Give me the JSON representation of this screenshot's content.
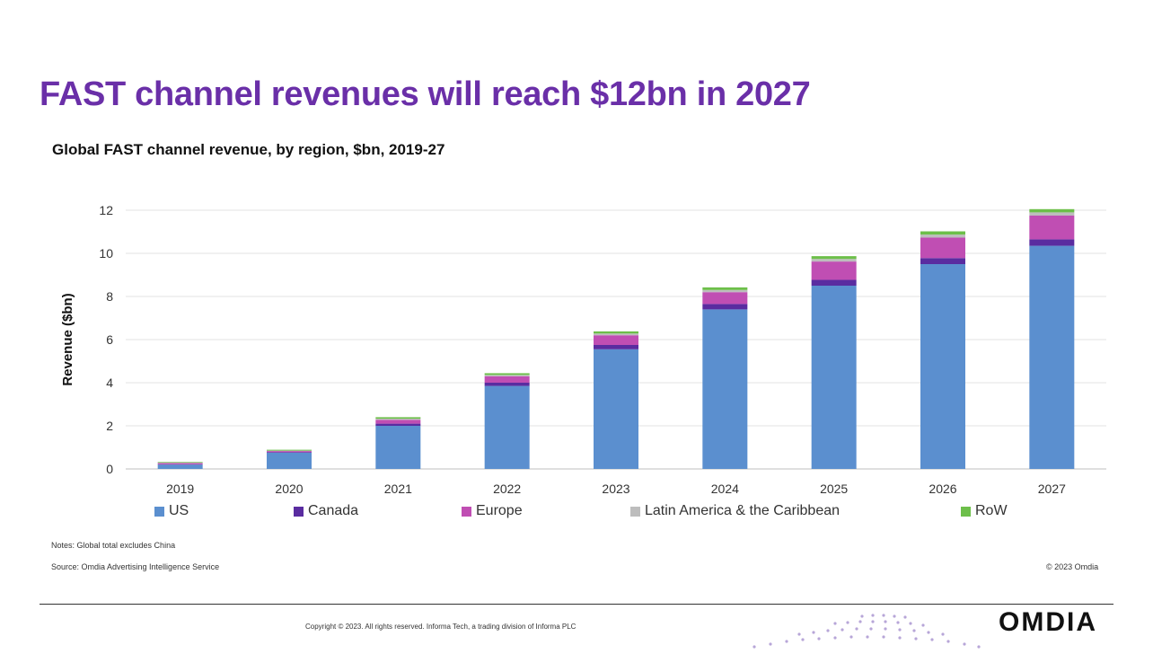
{
  "slide": {
    "title": "FAST channel revenues will reach $12bn in 2027"
  },
  "chart_data": {
    "type": "bar",
    "stacked": true,
    "title": "Global FAST channel revenue, by region, $bn, 2019-27",
    "xlabel": "",
    "ylabel": "Revenue ($bn)",
    "ylim": [
      0,
      12
    ],
    "yticks": [
      0,
      2,
      4,
      6,
      8,
      10,
      12
    ],
    "grid": true,
    "legend_position": "bottom",
    "categories": [
      "2019",
      "2020",
      "2021",
      "2022",
      "2023",
      "2024",
      "2025",
      "2026",
      "2027"
    ],
    "series": [
      {
        "name": "US",
        "color": "#5b8fcf",
        "values": [
          0.2,
          0.75,
          2.0,
          3.85,
          5.55,
          7.4,
          8.5,
          9.5,
          10.35
        ]
      },
      {
        "name": "Canada",
        "color": "#5a2ca0",
        "values": [
          0.02,
          0.03,
          0.1,
          0.15,
          0.2,
          0.25,
          0.27,
          0.28,
          0.3
        ]
      },
      {
        "name": "Europe",
        "color": "#c04eb3",
        "values": [
          0.05,
          0.05,
          0.18,
          0.3,
          0.45,
          0.55,
          0.85,
          0.95,
          1.1
        ]
      },
      {
        "name": "Latin America & the Caribbean",
        "color": "#bdbdbd",
        "values": [
          0.02,
          0.02,
          0.05,
          0.06,
          0.08,
          0.1,
          0.12,
          0.14,
          0.15
        ]
      },
      {
        "name": "RoW",
        "color": "#6dbf4a",
        "values": [
          0.03,
          0.04,
          0.07,
          0.08,
          0.1,
          0.12,
          0.13,
          0.15,
          0.15
        ]
      }
    ]
  },
  "notes": {
    "note": "Notes: Global total excludes China",
    "source": "Source: Omdia Advertising Intelligence Service",
    "copyright_right": "© 2023 Omdia"
  },
  "footer": {
    "copyright": "Copyright © 2023. All rights reserved. Informa Tech, a trading division of Informa PLC",
    "logo": "OMDIA"
  }
}
